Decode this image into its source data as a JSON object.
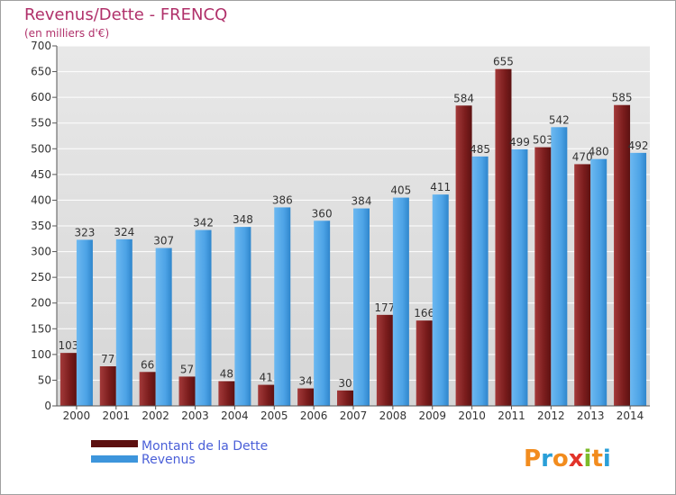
{
  "chart_data": {
    "type": "bar",
    "title": "Revenus/Dette - FRENCQ",
    "subtitle": "(en milliers d'€)",
    "categories": [
      "2000",
      "2001",
      "2002",
      "2003",
      "2004",
      "2005",
      "2006",
      "2007",
      "2008",
      "2009",
      "2010",
      "2011",
      "2012",
      "2013",
      "2014"
    ],
    "series": [
      {
        "name": "Montant de la Dette",
        "color": "#7a1c1c",
        "values": [
          103,
          77,
          66,
          57,
          48,
          41,
          34,
          30,
          177,
          166,
          584,
          655,
          503,
          470,
          585
        ]
      },
      {
        "name": "Revenus",
        "color": "#4da3e6",
        "values": [
          323,
          324,
          307,
          342,
          348,
          386,
          360,
          384,
          405,
          411,
          485,
          499,
          542,
          480,
          492
        ]
      }
    ],
    "ylim": [
      0,
      700
    ],
    "yticks": [
      0,
      50,
      100,
      150,
      200,
      250,
      300,
      350,
      400,
      450,
      500,
      550,
      600,
      650,
      700
    ],
    "xlabel": "",
    "ylabel": "",
    "grid": true
  },
  "logo": {
    "letters": [
      "P",
      "r",
      "o",
      "x",
      "i",
      "t",
      "i"
    ],
    "colors": [
      "#f28c1e",
      "#2a9fd8",
      "#f28c1e",
      "#e2342a",
      "#7dbb2a",
      "#f28c1e",
      "#2a9fd8"
    ]
  }
}
